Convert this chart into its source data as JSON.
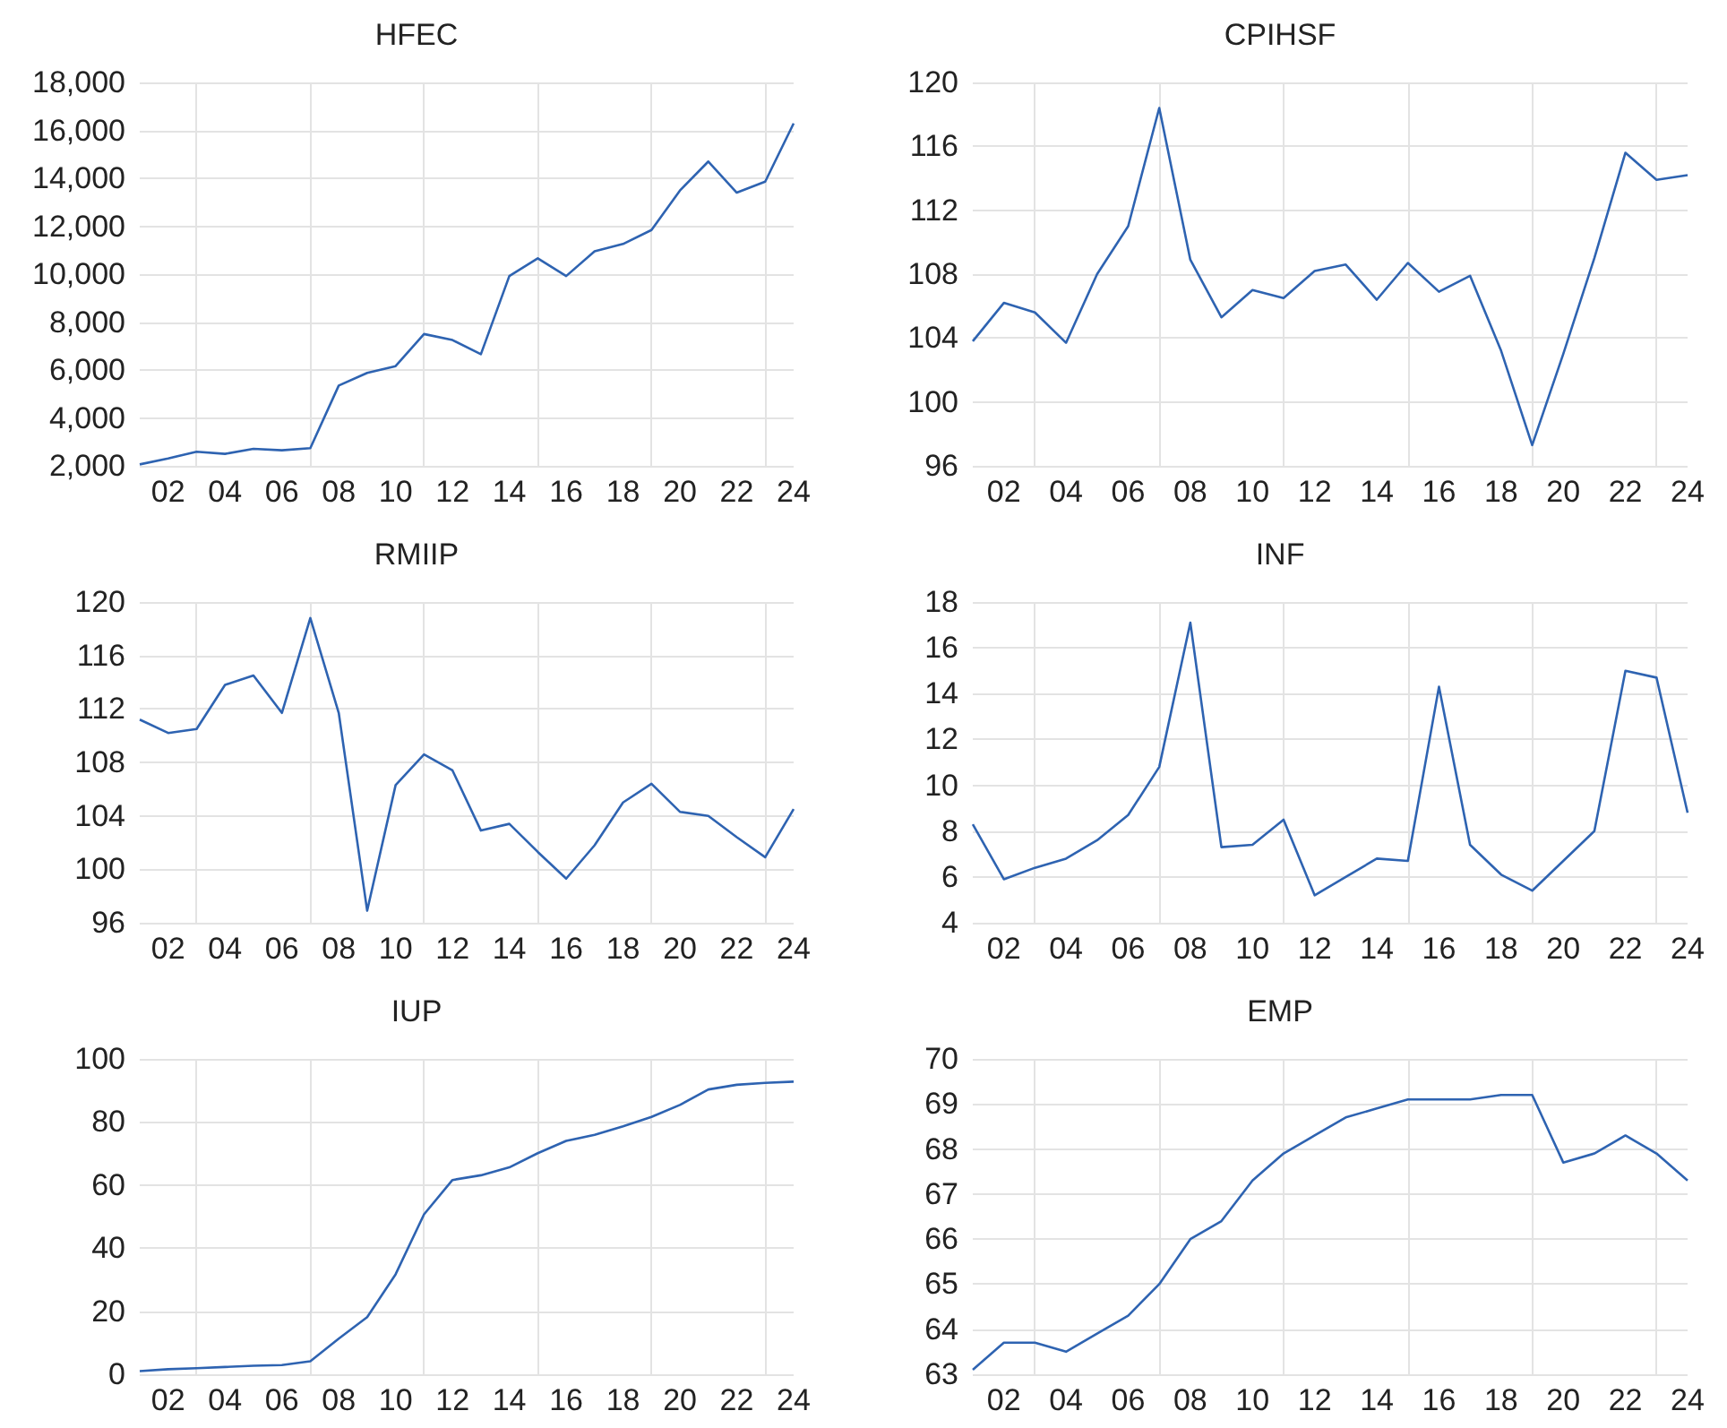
{
  "chart_data": [
    {
      "type": "line",
      "title": "HFEC",
      "categories": [
        null,
        "02",
        null,
        "04",
        null,
        "06",
        null,
        "08",
        null,
        "10",
        null,
        "12",
        null,
        "14",
        null,
        "16",
        null,
        "18",
        null,
        "20",
        null,
        "22",
        null,
        "24"
      ],
      "color": "#2e63b1",
      "grid": true,
      "ylim": [
        2000,
        18000
      ],
      "yticks": [
        {
          "value": 2000,
          "label": "2,000"
        },
        {
          "value": 4000,
          "label": "4,000"
        },
        {
          "value": 6000,
          "label": "6,000"
        },
        {
          "value": 8000,
          "label": "8,000"
        },
        {
          "value": 10000,
          "label": "10,000"
        },
        {
          "value": 12000,
          "label": "12,000"
        },
        {
          "value": 14000,
          "label": "14,000"
        },
        {
          "value": 16000,
          "label": "16,000"
        },
        {
          "value": 18000,
          "label": "18,000"
        }
      ],
      "values": [
        2060,
        2310,
        2590,
        2500,
        2710,
        2650,
        2740,
        5350,
        5880,
        6160,
        7500,
        7250,
        6660,
        9920,
        10660,
        9920,
        10950,
        11260,
        11840,
        13490,
        14700,
        13400,
        13860,
        16290
      ]
    },
    {
      "type": "line",
      "title": "CPIHSF",
      "categories": [
        null,
        "02",
        null,
        "04",
        null,
        "06",
        null,
        "08",
        null,
        "10",
        null,
        "12",
        null,
        "14",
        null,
        "16",
        null,
        "18",
        null,
        "20",
        null,
        "22",
        null,
        "24"
      ],
      "color": "#2e63b1",
      "grid": true,
      "ylim": [
        96,
        120
      ],
      "yticks": [
        96,
        100,
        104,
        108,
        112,
        116,
        120
      ],
      "values": [
        103.8,
        106.2,
        105.6,
        103.7,
        108.0,
        111.0,
        118.4,
        108.9,
        105.3,
        107.0,
        106.5,
        108.2,
        108.6,
        106.4,
        108.7,
        106.9,
        107.9,
        103.2,
        97.3,
        103.0,
        109.0,
        115.6,
        113.9,
        114.2
      ]
    },
    {
      "type": "line",
      "title": "RMIIP",
      "categories": [
        null,
        "02",
        null,
        "04",
        null,
        "06",
        null,
        "08",
        null,
        "10",
        null,
        "12",
        null,
        "14",
        null,
        "16",
        null,
        "18",
        null,
        "20",
        null,
        "22",
        null,
        "24"
      ],
      "color": "#2e63b1",
      "grid": true,
      "ylim": [
        96,
        120
      ],
      "yticks": [
        96,
        100,
        104,
        108,
        112,
        116,
        120
      ],
      "values": [
        111.2,
        110.2,
        110.5,
        113.8,
        114.5,
        111.7,
        118.8,
        111.7,
        96.9,
        106.3,
        108.6,
        107.4,
        102.9,
        103.4,
        101.3,
        99.3,
        101.8,
        105.0,
        106.4,
        104.3,
        104.0,
        102.4,
        100.9,
        104.5
      ]
    },
    {
      "type": "line",
      "title": "INF",
      "categories": [
        null,
        "02",
        null,
        "04",
        null,
        "06",
        null,
        "08",
        null,
        "10",
        null,
        "12",
        null,
        "14",
        null,
        "16",
        null,
        "18",
        null,
        "20",
        null,
        "22",
        null,
        "24"
      ],
      "color": "#2e63b1",
      "grid": true,
      "ylim": [
        4,
        18
      ],
      "yticks": [
        4,
        6,
        8,
        10,
        12,
        14,
        16,
        18
      ],
      "values": [
        8.3,
        5.9,
        6.4,
        6.8,
        7.6,
        8.7,
        10.8,
        17.1,
        7.3,
        7.4,
        8.5,
        5.2,
        6.0,
        6.8,
        6.7,
        14.3,
        7.4,
        6.1,
        5.4,
        6.7,
        8.0,
        15.0,
        14.7,
        8.8
      ]
    },
    {
      "type": "line",
      "title": "IUP",
      "categories": [
        null,
        "02",
        null,
        "04",
        null,
        "06",
        null,
        "08",
        null,
        "10",
        null,
        "12",
        null,
        "14",
        null,
        "16",
        null,
        "18",
        null,
        "20",
        null,
        "22",
        null,
        "24"
      ],
      "color": "#2e63b1",
      "grid": true,
      "ylim": [
        0,
        100
      ],
      "yticks": [
        0,
        20,
        40,
        60,
        80,
        100
      ],
      "values": [
        1.0,
        1.6,
        1.9,
        2.3,
        2.7,
        2.9,
        4.1,
        11.3,
        18.1,
        31.7,
        50.7,
        61.6,
        63.1,
        65.6,
        70.1,
        74.0,
        75.9,
        78.6,
        81.6,
        85.4,
        90.3,
        91.8,
        92.4,
        92.8
      ]
    },
    {
      "type": "line",
      "title": "EMP",
      "categories": [
        null,
        "02",
        null,
        "04",
        null,
        "06",
        null,
        "08",
        null,
        "10",
        null,
        "12",
        null,
        "14",
        null,
        "16",
        null,
        "18",
        null,
        "20",
        null,
        "22",
        null,
        "24"
      ],
      "color": "#2e63b1",
      "grid": true,
      "ylim": [
        63,
        70
      ],
      "yticks": [
        63,
        64,
        65,
        66,
        67,
        68,
        69,
        70
      ],
      "values": [
        63.1,
        63.7,
        63.7,
        63.5,
        63.9,
        64.3,
        65.0,
        66.0,
        66.4,
        67.3,
        67.9,
        68.3,
        68.7,
        68.9,
        69.1,
        69.1,
        69.1,
        69.2,
        69.2,
        67.7,
        67.9,
        68.3,
        67.9,
        67.3
      ]
    }
  ]
}
